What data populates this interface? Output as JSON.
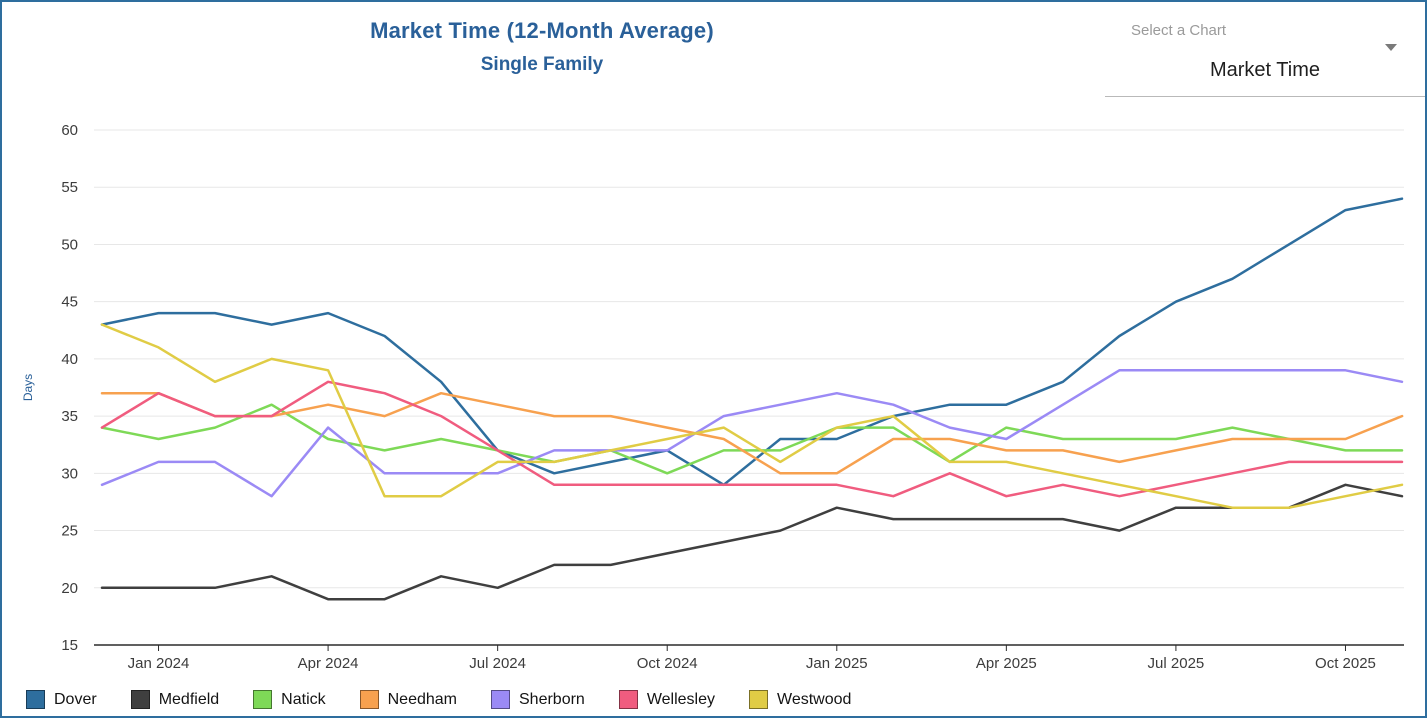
{
  "header": {
    "title": "Market Time (12-Month Average)",
    "subtitle": "Single Family"
  },
  "chart_selector": {
    "label": "Select a Chart",
    "value": "Market Time",
    "caret_icon": "chevron-down"
  },
  "colors": {
    "accent": "#2a6099",
    "border": "#2e6e9e",
    "text": "#1f1f1f",
    "muted_text": "#9a9a9a",
    "axis_text": "#3c3c3c",
    "axis_line": "#2b2b2b",
    "grid_line": "#e7e7e7"
  },
  "chart_data": {
    "type": "line",
    "title": "Market Time (12-Month Average)",
    "subtitle": "Single Family",
    "ylabel": "Days",
    "ylim": [
      15,
      60
    ],
    "ytick_step": 5,
    "grid": true,
    "legend_position": "bottom",
    "x": [
      "Dec 2023",
      "Jan 2024",
      "Feb 2024",
      "Mar 2024",
      "Apr 2024",
      "May 2024",
      "Jun 2024",
      "Jul 2024",
      "Aug 2024",
      "Sep 2024",
      "Oct 2024",
      "Nov 2024",
      "Dec 2024",
      "Jan 2025",
      "Feb 2025",
      "Mar 2025",
      "Apr 2025",
      "May 2025",
      "Jun 2025",
      "Jul 2025",
      "Aug 2025",
      "Sep 2025",
      "Oct 2025",
      "Nov 2025"
    ],
    "x_tick_labels": [
      "Jan 2024",
      "Apr 2024",
      "Jul 2024",
      "Oct 2024",
      "Jan 2025",
      "Apr 2025",
      "Jul 2025",
      "Oct 2025"
    ],
    "x_tick_indices": [
      1,
      4,
      7,
      10,
      13,
      16,
      19,
      22
    ],
    "series": [
      {
        "name": "Dover",
        "color": "#2e6e9e",
        "values": [
          43,
          44,
          44,
          43,
          44,
          42,
          38,
          32,
          30,
          31,
          32,
          29,
          33,
          33,
          35,
          36,
          36,
          38,
          42,
          45,
          47,
          50,
          53,
          54
        ]
      },
      {
        "name": "Medfield",
        "color": "#3f3f3f",
        "values": [
          20,
          20,
          20,
          21,
          19,
          19,
          21,
          20,
          22,
          22,
          23,
          24,
          25,
          27,
          26,
          26,
          26,
          26,
          25,
          27,
          27,
          27,
          29,
          28
        ]
      },
      {
        "name": "Natick",
        "color": "#7ed957",
        "values": [
          34,
          33,
          34,
          36,
          33,
          32,
          33,
          32,
          31,
          32,
          30,
          32,
          32,
          34,
          34,
          31,
          34,
          33,
          33,
          33,
          34,
          33,
          32,
          32
        ]
      },
      {
        "name": "Needham",
        "color": "#f7a14f",
        "values": [
          37,
          37,
          35,
          35,
          36,
          35,
          37,
          36,
          35,
          35,
          34,
          33,
          30,
          30,
          33,
          33,
          32,
          32,
          31,
          32,
          33,
          33,
          33,
          35
        ]
      },
      {
        "name": "Sherborn",
        "color": "#9b8af5",
        "values": [
          29,
          31,
          31,
          28,
          34,
          30,
          30,
          30,
          32,
          32,
          32,
          35,
          36,
          37,
          36,
          34,
          33,
          36,
          39,
          39,
          39,
          39,
          39,
          38
        ]
      },
      {
        "name": "Wellesley",
        "color": "#f05c7f",
        "values": [
          34,
          37,
          35,
          35,
          38,
          37,
          35,
          32,
          29,
          29,
          29,
          29,
          29,
          29,
          28,
          30,
          28,
          29,
          28,
          29,
          30,
          31,
          31,
          31
        ]
      },
      {
        "name": "Westwood",
        "color": "#e0cc45",
        "values": [
          43,
          41,
          38,
          40,
          39,
          28,
          28,
          31,
          31,
          32,
          33,
          34,
          31,
          34,
          35,
          31,
          31,
          30,
          29,
          28,
          27,
          27,
          28,
          29
        ]
      }
    ]
  }
}
